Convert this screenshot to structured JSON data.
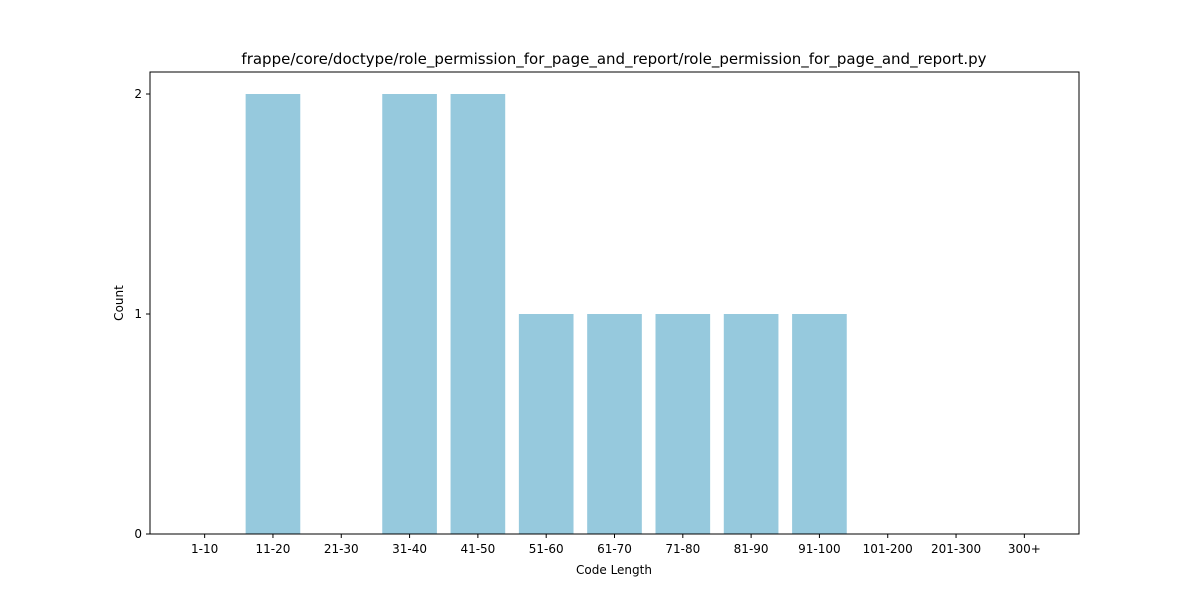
{
  "chart_data": {
    "type": "bar",
    "title": "frappe/core/doctype/role_permission_for_page_and_report/role_permission_for_page_and_report.py",
    "xlabel": "Code Length",
    "ylabel": "Count",
    "categories": [
      "1-10",
      "11-20",
      "21-30",
      "31-40",
      "41-50",
      "51-60",
      "61-70",
      "71-80",
      "81-90",
      "91-100",
      "101-200",
      "201-300",
      "300+"
    ],
    "values": [
      0,
      2,
      0,
      2,
      2,
      1,
      1,
      1,
      1,
      1,
      0,
      0,
      0
    ],
    "ylim": [
      0,
      2.1
    ],
    "yticks": [
      "0",
      "1",
      "2"
    ],
    "bar_color": "#96c9dd",
    "grid": false,
    "legend": "none"
  }
}
